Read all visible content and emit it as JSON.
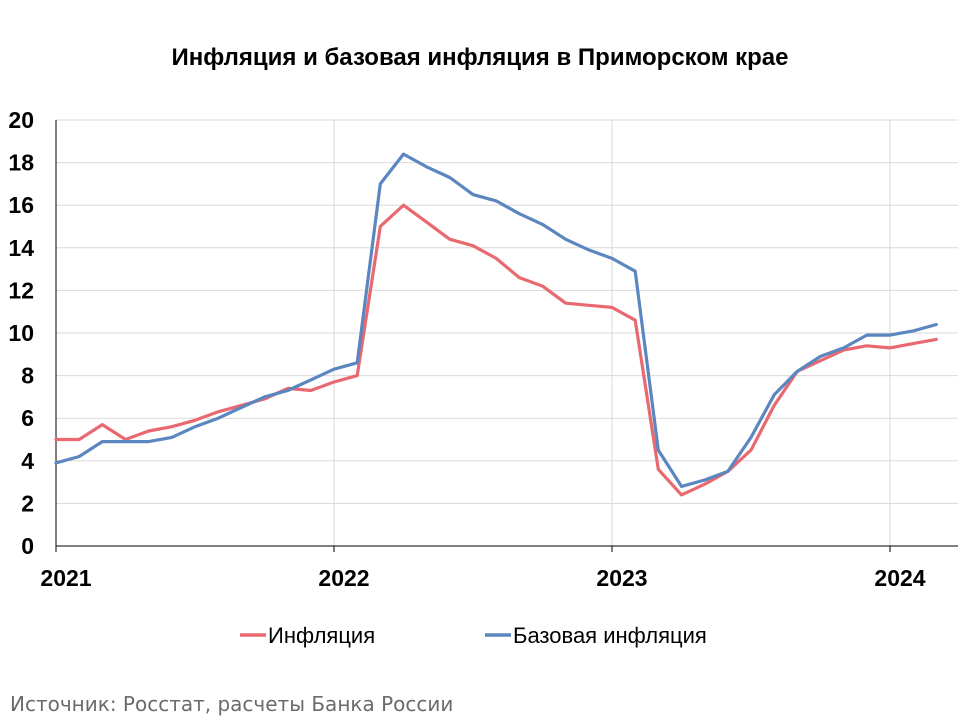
{
  "chart_data": {
    "type": "line",
    "title": "Инфляция и базовая инфляция в Приморском крае",
    "xlabel": "",
    "ylabel": "",
    "ylim": [
      0,
      20
    ],
    "yticks": [
      0,
      2,
      4,
      6,
      8,
      10,
      12,
      14,
      16,
      18,
      20
    ],
    "xticks": [
      "2021",
      "2022",
      "2023",
      "2024"
    ],
    "x": [
      "2021-01",
      "2021-02",
      "2021-03",
      "2021-04",
      "2021-05",
      "2021-06",
      "2021-07",
      "2021-08",
      "2021-09",
      "2021-10",
      "2021-11",
      "2021-12",
      "2022-01",
      "2022-02",
      "2022-03",
      "2022-04",
      "2022-05",
      "2022-06",
      "2022-07",
      "2022-08",
      "2022-09",
      "2022-10",
      "2022-11",
      "2022-12",
      "2023-01",
      "2023-02",
      "2023-03",
      "2023-04",
      "2023-05",
      "2023-06",
      "2023-07",
      "2023-08",
      "2023-09",
      "2023-10",
      "2023-11",
      "2023-12",
      "2024-01",
      "2024-02",
      "2024-03"
    ],
    "grid": true,
    "legend_position": "bottom",
    "series": [
      {
        "name": "Инфляция",
        "color": "#e8696f",
        "values": [
          5.0,
          5.0,
          5.7,
          5.0,
          5.4,
          5.6,
          5.9,
          6.3,
          6.6,
          6.9,
          7.4,
          7.3,
          7.7,
          8.0,
          15.0,
          16.0,
          15.2,
          14.4,
          14.1,
          13.5,
          12.6,
          12.2,
          11.4,
          11.3,
          11.2,
          10.6,
          3.6,
          2.4,
          2.9,
          3.5,
          4.5,
          6.6,
          8.2,
          8.7,
          9.2,
          9.4,
          9.3,
          9.5,
          9.7
        ]
      },
      {
        "name": "Базовая инфляция",
        "color": "#5b86bf",
        "values": [
          3.9,
          4.2,
          4.9,
          4.9,
          4.9,
          5.1,
          5.6,
          6.0,
          6.5,
          7.0,
          7.3,
          7.8,
          8.3,
          8.6,
          17.0,
          18.4,
          17.8,
          17.3,
          16.5,
          16.2,
          15.6,
          15.1,
          14.4,
          13.9,
          13.5,
          12.9,
          4.5,
          2.8,
          3.1,
          3.5,
          5.1,
          7.1,
          8.2,
          8.9,
          9.3,
          9.9,
          9.9,
          10.1,
          10.4
        ]
      }
    ]
  },
  "source_text": "Источник: Росстат, расчеты Банка России"
}
